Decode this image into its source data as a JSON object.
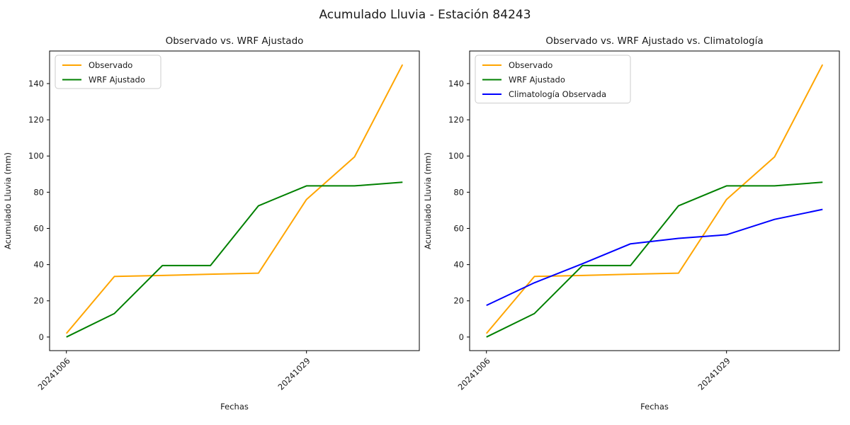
{
  "figure": {
    "suptitle": "Acumulado Lluvia - Estación 84243"
  },
  "colors": {
    "observado": "#FFA500",
    "wrf_ajustado": "#008000",
    "climatologia": "#0000FF",
    "axes": "#000000",
    "legend_border": "#cccccc"
  },
  "chart_data": [
    {
      "type": "line",
      "title": "Observado vs. WRF Ajustado",
      "xlabel": "Fechas",
      "ylabel": "Acumulado Lluvia (mm)",
      "x_indices": [
        0,
        1,
        2,
        3,
        4,
        5,
        6,
        7
      ],
      "x_tick_positions": [
        0,
        5
      ],
      "x_tick_labels": [
        "20241006",
        "20241029"
      ],
      "x_tick_rotation": 45,
      "y_ticks": [
        0,
        20,
        40,
        60,
        80,
        100,
        120,
        140
      ],
      "xlim": [
        -0.35,
        7.35
      ],
      "ylim": [
        -7.5,
        158
      ],
      "grid": false,
      "legend_position": "upper-left",
      "series": [
        {
          "name": "Observado",
          "color": "#FFA500",
          "values": [
            2,
            33.5,
            34,
            34.7,
            35.3,
            76,
            99.5,
            150.5
          ]
        },
        {
          "name": "WRF Ajustado",
          "color": "#008000",
          "values": [
            0,
            13,
            39.5,
            39.5,
            72.5,
            83.5,
            83.5,
            85.5
          ]
        }
      ]
    },
    {
      "type": "line",
      "title": "Observado vs. WRF Ajustado vs. Climatología",
      "xlabel": "Fechas",
      "ylabel": "Acumulado Lluvia (mm)",
      "x_indices": [
        0,
        1,
        2,
        3,
        4,
        5,
        6,
        7
      ],
      "x_tick_positions": [
        0,
        5
      ],
      "x_tick_labels": [
        "20241006",
        "20241029"
      ],
      "x_tick_rotation": 45,
      "y_ticks": [
        0,
        20,
        40,
        60,
        80,
        100,
        120,
        140
      ],
      "xlim": [
        -0.35,
        7.35
      ],
      "ylim": [
        -7.5,
        158
      ],
      "grid": false,
      "legend_position": "upper-left",
      "series": [
        {
          "name": "Observado",
          "color": "#FFA500",
          "values": [
            2,
            33.5,
            34,
            34.7,
            35.3,
            76,
            99.5,
            150.5
          ]
        },
        {
          "name": "WRF Ajustado",
          "color": "#008000",
          "values": [
            0,
            13,
            39.5,
            39.5,
            72.5,
            83.5,
            83.5,
            85.5
          ]
        },
        {
          "name": "Climatología Observada",
          "color": "#0000FF",
          "values": [
            17.5,
            30,
            40.5,
            51.5,
            54.5,
            56.5,
            65,
            70.5
          ]
        }
      ]
    }
  ]
}
